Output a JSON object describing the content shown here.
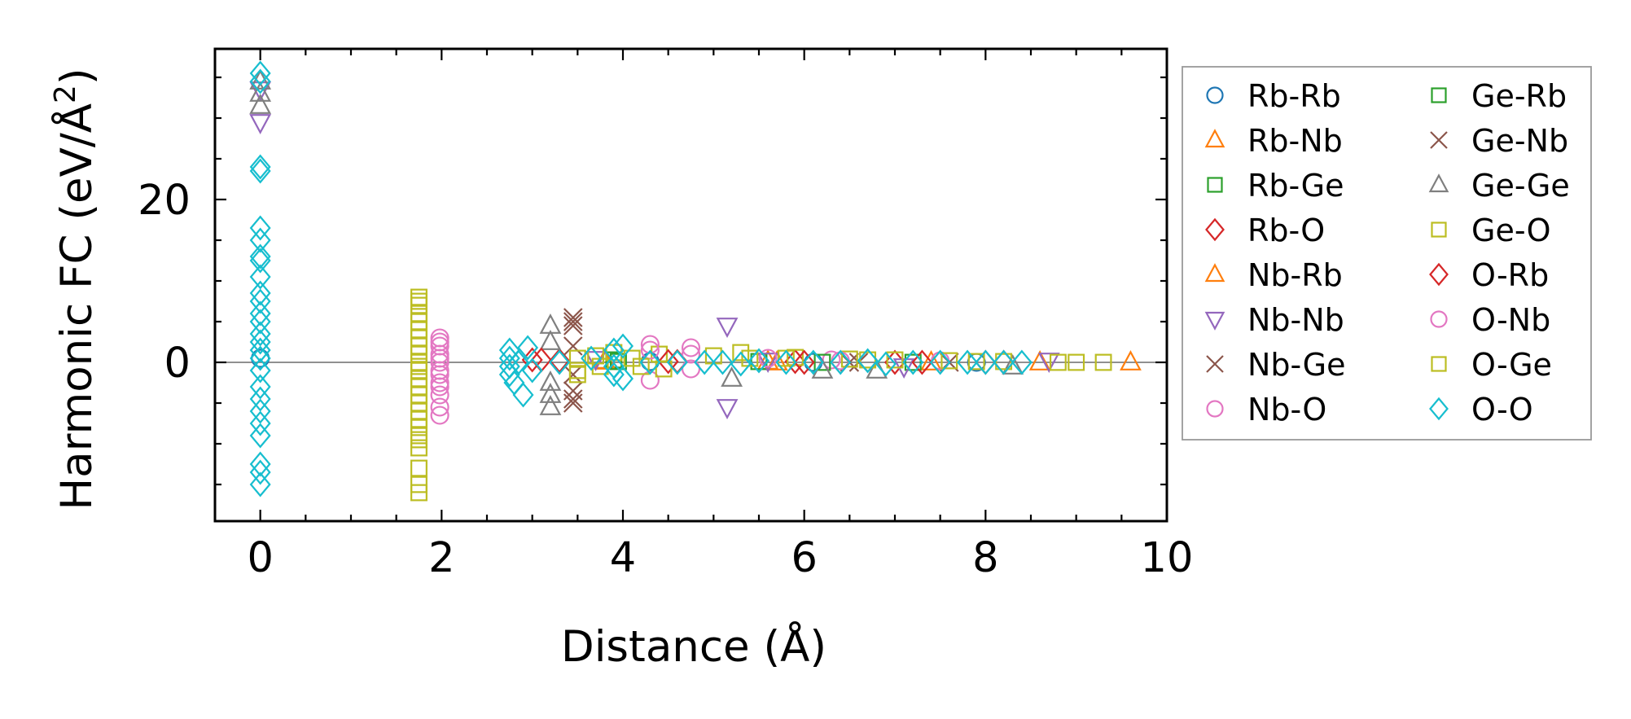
{
  "chart_data": {
    "type": "scatter",
    "title": "",
    "xlabel": "Distance (Å)",
    "ylabel_main": "Harmonic FC (eV/Å",
    "ylabel_sup": "2",
    "ylabel_close": ")",
    "xlim": [
      -0.5,
      10.0
    ],
    "ylim": [
      -19.5,
      38.5
    ],
    "xticks": [
      0,
      2,
      4,
      6,
      8,
      10
    ],
    "xtick_labels": [
      "0",
      "2",
      "4",
      "6",
      "8",
      "10"
    ],
    "yticks": [
      0,
      20
    ],
    "ytick_labels": [
      "0",
      "20"
    ],
    "x_minor_step": 0.5,
    "y_minor_step": 5,
    "zero_line": true,
    "legend_position": "outside-right",
    "series": [
      {
        "name": "Rb-Rb",
        "marker": "circle",
        "color": "#1f77b4",
        "points": [
          [
            0,
            0.5
          ],
          [
            4.3,
            0.1
          ],
          [
            6.1,
            0.0
          ],
          [
            7.9,
            0.0
          ]
        ]
      },
      {
        "name": "Rb-Nb",
        "marker": "triangle-up",
        "color": "#ff7f0e",
        "points": [
          [
            3.8,
            0.2
          ],
          [
            5.6,
            0.1
          ],
          [
            7.4,
            0.0
          ],
          [
            9.6,
            0.0
          ]
        ]
      },
      {
        "name": "Rb-Ge",
        "marker": "square",
        "color": "#2ca02c",
        "points": [
          [
            3.9,
            0.3
          ],
          [
            5.5,
            0.1
          ],
          [
            7.2,
            0.0
          ]
        ]
      },
      {
        "name": "Rb-O",
        "marker": "diamond",
        "color": "#d62728",
        "points": [
          [
            3.0,
            0.3
          ],
          [
            3.3,
            0.2
          ],
          [
            4.6,
            0.1
          ],
          [
            5.9,
            0.1
          ],
          [
            7.0,
            0.0
          ],
          [
            8.2,
            0.0
          ]
        ]
      },
      {
        "name": "Nb-Rb",
        "marker": "triangle-up",
        "color": "#ff7f0e",
        "points": [
          [
            3.8,
            0.1
          ],
          [
            5.7,
            0.0
          ],
          [
            8.6,
            0.0
          ]
        ]
      },
      {
        "name": "Nb-Nb",
        "marker": "triangle-down",
        "color": "#9467bd",
        "points": [
          [
            0,
            29.5
          ],
          [
            0,
            33.5
          ],
          [
            3.7,
            0.4
          ],
          [
            5.15,
            4.5
          ],
          [
            5.15,
            -5.5
          ],
          [
            5.6,
            0.2
          ],
          [
            7.1,
            -0.5
          ],
          [
            8.7,
            0.2
          ]
        ]
      },
      {
        "name": "Nb-Ge",
        "marker": "x",
        "color": "#8c564b",
        "points": [
          [
            3.45,
            5.5
          ],
          [
            3.45,
            4.5
          ],
          [
            3.45,
            2.0
          ],
          [
            3.45,
            -1.5
          ],
          [
            3.45,
            -3.5
          ],
          [
            3.45,
            -5.0
          ],
          [
            6.5,
            0.0
          ],
          [
            7.6,
            0.0
          ]
        ]
      },
      {
        "name": "Nb-O",
        "marker": "circle",
        "color": "#e377c2",
        "points": [
          [
            1.98,
            3.0
          ],
          [
            1.98,
            2.0
          ],
          [
            1.98,
            1.0
          ],
          [
            1.98,
            0.0
          ],
          [
            1.98,
            -1.0
          ],
          [
            1.98,
            -2.5
          ],
          [
            1.98,
            -4.0
          ],
          [
            1.98,
            -5.5
          ],
          [
            1.98,
            -6.5
          ],
          [
            4.3,
            2.2
          ],
          [
            4.3,
            -2.2
          ],
          [
            4.75,
            1.8
          ],
          [
            4.75,
            -0.8
          ],
          [
            5.6,
            0.5
          ],
          [
            6.3,
            0.3
          ],
          [
            7.5,
            0.2
          ]
        ]
      },
      {
        "name": "Ge-Rb",
        "marker": "square",
        "color": "#2ca02c",
        "points": [
          [
            3.95,
            0.1
          ],
          [
            6.2,
            0.0
          ]
        ]
      },
      {
        "name": "Ge-Nb",
        "marker": "x",
        "color": "#8c564b",
        "points": [
          [
            3.45,
            5.0
          ],
          [
            3.45,
            -4.5
          ],
          [
            6.6,
            0.0
          ]
        ]
      },
      {
        "name": "Ge-Ge",
        "marker": "triangle-up",
        "color": "#7f7f7f",
        "points": [
          [
            0,
            31.5
          ],
          [
            0,
            33.0
          ],
          [
            0,
            34.5
          ],
          [
            3.2,
            4.5
          ],
          [
            3.2,
            2.5
          ],
          [
            3.2,
            -2.5
          ],
          [
            3.2,
            -4.0
          ],
          [
            3.2,
            -5.5
          ],
          [
            5.2,
            -2.0
          ],
          [
            6.2,
            -1.0
          ],
          [
            6.8,
            -1.0
          ],
          [
            8.3,
            -0.5
          ]
        ]
      },
      {
        "name": "Ge-O",
        "marker": "square",
        "color": "#bcbd22",
        "points": [
          [
            1.75,
            8.0
          ],
          [
            1.75,
            7.0
          ],
          [
            1.75,
            6.0
          ],
          [
            1.75,
            5.0
          ],
          [
            1.75,
            4.0
          ],
          [
            1.75,
            3.0
          ],
          [
            1.75,
            2.0
          ],
          [
            1.75,
            1.0
          ],
          [
            1.75,
            0.0
          ],
          [
            1.75,
            -1.0
          ],
          [
            1.75,
            -2.0
          ],
          [
            1.75,
            -3.0
          ],
          [
            1.75,
            -4.0
          ],
          [
            1.75,
            -5.0
          ],
          [
            1.75,
            -6.0
          ],
          [
            1.75,
            -7.0
          ],
          [
            1.75,
            -8.0
          ],
          [
            1.75,
            -9.0
          ],
          [
            1.75,
            -10.5
          ],
          [
            1.75,
            -13.0
          ],
          [
            1.75,
            -16.0
          ],
          [
            3.5,
            0.5
          ],
          [
            3.5,
            -1.5
          ],
          [
            3.7,
            0.8
          ],
          [
            3.9,
            1.2
          ],
          [
            4.1,
            0.5
          ],
          [
            4.4,
            1.0
          ],
          [
            5.0,
            0.8
          ],
          [
            5.4,
            0.5
          ],
          [
            5.9,
            0.6
          ],
          [
            6.5,
            0.4
          ],
          [
            7.0,
            0.3
          ],
          [
            7.6,
            0.2
          ],
          [
            8.2,
            0.1
          ]
        ]
      },
      {
        "name": "O-Rb",
        "marker": "diamond",
        "color": "#d62728",
        "points": [
          [
            3.1,
            0.3
          ],
          [
            4.5,
            0.1
          ],
          [
            6.0,
            0.0
          ],
          [
            7.3,
            0.0
          ],
          [
            8.0,
            0.0
          ]
        ]
      },
      {
        "name": "O-Nb",
        "marker": "circle",
        "color": "#e377c2",
        "points": [
          [
            1.98,
            2.5
          ],
          [
            1.98,
            0.5
          ],
          [
            1.98,
            -1.5
          ],
          [
            1.98,
            -3.0
          ],
          [
            4.3,
            1.5
          ],
          [
            4.75,
            1.0
          ],
          [
            6.4,
            0.2
          ]
        ]
      },
      {
        "name": "O-Ge",
        "marker": "square",
        "color": "#bcbd22",
        "points": [
          [
            1.75,
            7.5
          ],
          [
            1.75,
            -0.5
          ],
          [
            1.75,
            -9.5
          ],
          [
            1.75,
            -15.0
          ],
          [
            3.5,
            -1.0
          ],
          [
            3.75,
            -0.5
          ],
          [
            4.2,
            -0.5
          ],
          [
            4.45,
            -0.8
          ],
          [
            5.3,
            1.2
          ],
          [
            5.8,
            0.5
          ],
          [
            6.7,
            0.3
          ],
          [
            7.9,
            0.1
          ],
          [
            8.8,
            0.0
          ],
          [
            9.0,
            0.0
          ],
          [
            9.3,
            0.0
          ]
        ]
      },
      {
        "name": "O-O",
        "marker": "diamond",
        "color": "#17becf",
        "points": [
          [
            0,
            35.5
          ],
          [
            0,
            34.5
          ],
          [
            0,
            24.0
          ],
          [
            0,
            23.5
          ],
          [
            0,
            16.5
          ],
          [
            0,
            15.0
          ],
          [
            0,
            13.0
          ],
          [
            0,
            12.5
          ],
          [
            0,
            10.5
          ],
          [
            0,
            8.5
          ],
          [
            0,
            7.5
          ],
          [
            0,
            6.0
          ],
          [
            0,
            5.0
          ],
          [
            0,
            3.5
          ],
          [
            0,
            2.5
          ],
          [
            0,
            1.5
          ],
          [
            0,
            0.5
          ],
          [
            0,
            -1.0
          ],
          [
            0,
            -3.0
          ],
          [
            0,
            -4.5
          ],
          [
            0,
            -6.0
          ],
          [
            0,
            -7.5
          ],
          [
            0,
            -9.0
          ],
          [
            0,
            -12.5
          ],
          [
            0,
            -13.5
          ],
          [
            0,
            -15.0
          ],
          [
            2.75,
            1.5
          ],
          [
            2.75,
            0.5
          ],
          [
            2.75,
            -0.5
          ],
          [
            2.75,
            -1.5
          ],
          [
            2.8,
            -2.5
          ],
          [
            2.85,
            0.0
          ],
          [
            2.9,
            -4.0
          ],
          [
            2.95,
            1.8
          ],
          [
            3.0,
            -1.0
          ],
          [
            3.3,
            0.0
          ],
          [
            3.65,
            0.5
          ],
          [
            3.9,
            1.5
          ],
          [
            3.9,
            -0.5
          ],
          [
            3.9,
            -1.5
          ],
          [
            4.0,
            2.0
          ],
          [
            4.0,
            -2.0
          ],
          [
            4.3,
            0.0
          ],
          [
            4.6,
            0.0
          ],
          [
            4.9,
            0.0
          ],
          [
            5.1,
            0.0
          ],
          [
            5.3,
            -0.2
          ],
          [
            5.5,
            0.2
          ],
          [
            5.8,
            0.0
          ],
          [
            6.1,
            0.0
          ],
          [
            6.4,
            0.0
          ],
          [
            6.7,
            0.2
          ],
          [
            6.9,
            -0.2
          ],
          [
            7.2,
            0.0
          ],
          [
            7.5,
            0.0
          ],
          [
            7.8,
            0.0
          ],
          [
            8.0,
            0.0
          ],
          [
            8.2,
            0.0
          ],
          [
            8.4,
            0.0
          ]
        ]
      }
    ]
  }
}
